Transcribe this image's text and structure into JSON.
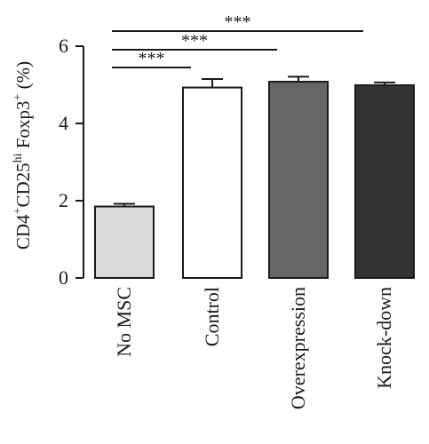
{
  "chart_data": {
    "type": "bar",
    "categories": [
      "No MSC",
      "Control",
      "Overexpression",
      "Knock-down"
    ],
    "values": [
      1.85,
      4.93,
      5.08,
      4.99
    ],
    "errors": [
      0.07,
      0.22,
      0.13,
      0.07
    ],
    "bar_colors": [
      "#d9d9d9",
      "#ffffff",
      "#666666",
      "#333333"
    ],
    "ylabel": {
      "base1": "CD4",
      "sup1": "+",
      "base2": "CD25",
      "sup2": "hi",
      "base3": " Foxp3",
      "sup3": "+",
      "base4": " (%)"
    },
    "ylim": [
      0,
      6
    ],
    "yticks": [
      0,
      2,
      4,
      6
    ],
    "significance": [
      {
        "from": "No MSC",
        "to": "Control",
        "label": "***"
      },
      {
        "from": "No MSC",
        "to": "Overexpression",
        "label": "***"
      },
      {
        "from": "No MSC",
        "to": "Knock-down",
        "label": "***"
      }
    ]
  }
}
